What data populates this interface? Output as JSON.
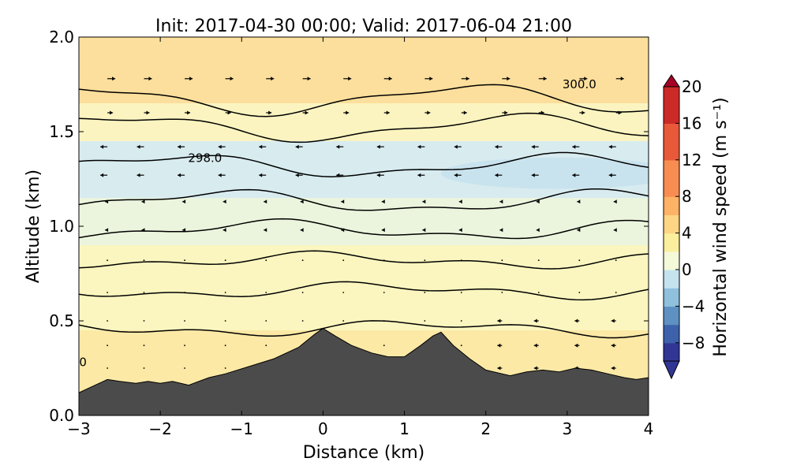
{
  "chart_data": {
    "type": "contour",
    "title": "Init: 2017-04-30 00:00; Valid: 2017-06-04 21:00",
    "xlabel": "Distance (km)",
    "ylabel": "Altitude (km)",
    "xlim": [
      -3,
      4
    ],
    "ylim": [
      0,
      2.0
    ],
    "xticks": [
      -3,
      -2,
      -1,
      0,
      1,
      2,
      3,
      4
    ],
    "xtick_labels": [
      "−3",
      "−2",
      "−1",
      "0",
      "1",
      "2",
      "3",
      "4"
    ],
    "yticks": [
      0,
      0.5,
      1.0,
      1.5,
      2.0
    ],
    "ytick_labels": [
      "0.0",
      "0.5",
      "1.0",
      "1.5",
      "2.0"
    ],
    "colorbar": {
      "label": "Horizontal wind speed (m s⁻¹)",
      "range": [
        -10,
        20
      ],
      "ticks": [
        -8,
        -4,
        0,
        4,
        8,
        12,
        16,
        20
      ],
      "tick_labels": [
        "−8",
        "−4",
        "0",
        "4",
        "8",
        "12",
        "16",
        "20"
      ],
      "colormap": "RdYlBu_r",
      "extend": "both"
    },
    "bands": [
      {
        "name": "0.00-0.45 km",
        "value": 2.2,
        "color": "#fce9a6"
      },
      {
        "name": "0.45-0.90 km",
        "value": 1.0,
        "color": "#fbf6bf"
      },
      {
        "name": "0.90-1.15 km",
        "value": -0.8,
        "color": "#ebf5dd"
      },
      {
        "name": "1.15-1.45 km",
        "value": -2.5,
        "color": "#d8ecf0"
      },
      {
        "name": "1.45-1.65 km",
        "value": 0.8,
        "color": "#fbf4c0"
      },
      {
        "name": "1.65-2.00 km",
        "value": 3.0,
        "color": "#fcdf9c"
      }
    ],
    "terrain": {
      "color": "#4b4b4b",
      "x": [
        -3,
        -2.8,
        -2.65,
        -2.5,
        -2.3,
        -2.15,
        -2.0,
        -1.85,
        -1.65,
        -1.4,
        -1.2,
        -0.9,
        -0.6,
        -0.3,
        -0.1,
        0.0,
        0.15,
        0.35,
        0.6,
        0.8,
        1.0,
        1.2,
        1.35,
        1.45,
        1.6,
        1.8,
        2.0,
        2.3,
        2.5,
        2.7,
        2.9,
        3.1,
        3.3,
        3.5,
        3.7,
        3.85,
        4.0
      ],
      "y": [
        0.12,
        0.16,
        0.19,
        0.18,
        0.17,
        0.18,
        0.17,
        0.18,
        0.16,
        0.2,
        0.22,
        0.26,
        0.3,
        0.36,
        0.43,
        0.46,
        0.42,
        0.37,
        0.33,
        0.31,
        0.31,
        0.37,
        0.42,
        0.44,
        0.37,
        0.3,
        0.24,
        0.21,
        0.23,
        0.24,
        0.23,
        0.25,
        0.24,
        0.22,
        0.2,
        0.19,
        0.2
      ]
    },
    "contour_levels": [
      {
        "base": 0.46,
        "amp": 0.03
      },
      {
        "base": 0.66,
        "amp": 0.03
      },
      {
        "base": 0.82,
        "amp": 0.03
      },
      {
        "base": 0.98,
        "amp": 0.04
      },
      {
        "base": 1.13,
        "amp": 0.05
      },
      {
        "base": 1.32,
        "amp": 0.05
      },
      {
        "base": 1.52,
        "amp": 0.06
      },
      {
        "base": 1.67,
        "amp": 0.07
      }
    ],
    "contour_labels": [
      {
        "text": "300.0",
        "x": 3.15,
        "y": 1.73
      },
      {
        "text": "298.0",
        "x": -1.45,
        "y": 1.34
      },
      {
        "text": "0",
        "x": -2.95,
        "y": 0.26
      }
    ],
    "vector_columns_x": [
      -2.65,
      -2.2,
      -1.7,
      -1.2,
      -0.7,
      -0.25,
      0.25,
      0.75,
      1.25,
      1.7,
      2.2,
      2.65,
      3.15,
      3.6
    ],
    "vector_rows_y": [
      0.25,
      0.37,
      0.5,
      0.65,
      0.82,
      0.98,
      1.13,
      1.27,
      1.42,
      1.6,
      1.78
    ]
  }
}
